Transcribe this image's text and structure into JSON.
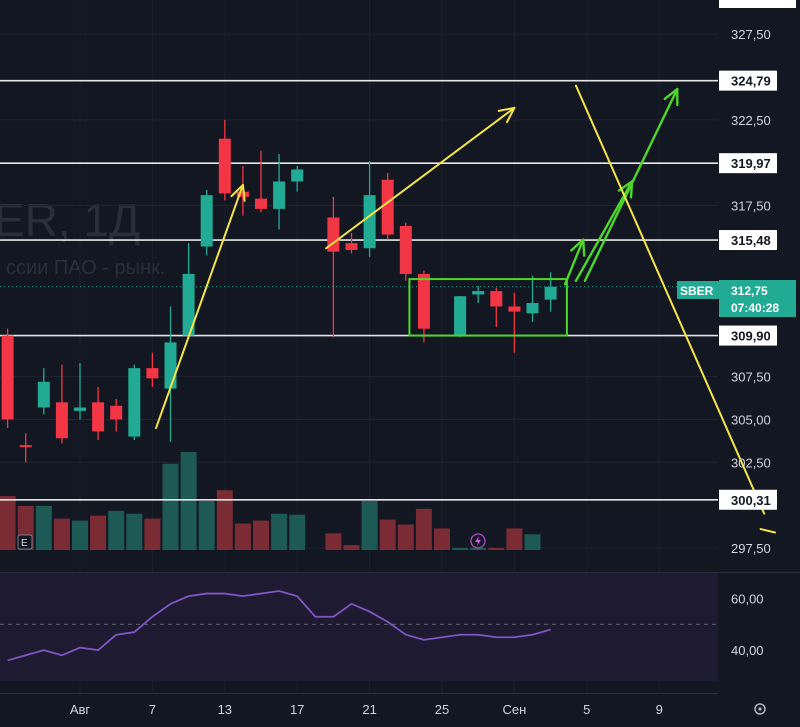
{
  "chart_data": {
    "type": "candlestick",
    "symbol": "SBER",
    "watermark_main": "ER, 1Д",
    "watermark_sub": "ссии ПАО - рынк.",
    "last_price": "312,75",
    "countdown": "07:40:28",
    "price_axis": {
      "ylim": [
        296.5,
        329.5
      ],
      "ticks": [
        "327,50",
        "322,50",
        "317,50",
        "307,50",
        "305,00",
        "302,50",
        "297,50"
      ],
      "tick_values": [
        327.5,
        322.5,
        317.5,
        307.5,
        305.0,
        302.5,
        297.5
      ]
    },
    "levels": [
      {
        "value": 324.79,
        "label": "324,79"
      },
      {
        "value": 319.97,
        "label": "319,97"
      },
      {
        "value": 315.48,
        "label": "315,48"
      },
      {
        "value": 309.9,
        "label": "309,90"
      },
      {
        "value": 300.31,
        "label": "300,31"
      }
    ],
    "x_axis": {
      "labels": [
        "Авг",
        "7",
        "13",
        "17",
        "21",
        "25",
        "Сен",
        "5",
        "9"
      ],
      "label_days": [
        0,
        4,
        8,
        12,
        16,
        20,
        24,
        28,
        32
      ]
    },
    "candles": [
      {
        "d": -4,
        "o": 309.9,
        "c": 305.0,
        "h": 310.3,
        "l": 304.5
      },
      {
        "d": -3,
        "o": 303.5,
        "c": 303.4,
        "h": 304.2,
        "l": 302.5
      },
      {
        "d": -2,
        "o": 305.7,
        "c": 307.2,
        "h": 308.0,
        "l": 305.3
      },
      {
        "d": -1,
        "o": 306.0,
        "c": 303.9,
        "h": 308.2,
        "l": 303.6
      },
      {
        "d": 0,
        "o": 305.5,
        "c": 305.7,
        "h": 308.3,
        "l": 305.0
      },
      {
        "d": 1,
        "o": 306.0,
        "c": 304.3,
        "h": 306.9,
        "l": 303.8
      },
      {
        "d": 2,
        "o": 305.8,
        "c": 305.0,
        "h": 306.2,
        "l": 304.3
      },
      {
        "d": 3,
        "o": 304.0,
        "c": 308.0,
        "h": 308.2,
        "l": 303.8
      },
      {
        "d": 4,
        "o": 308.0,
        "c": 307.4,
        "h": 308.9,
        "l": 306.9
      },
      {
        "d": 5,
        "o": 306.8,
        "c": 309.5,
        "h": 311.6,
        "l": 303.7
      },
      {
        "d": 6,
        "o": 309.9,
        "c": 313.5,
        "h": 315.3,
        "l": 309.7
      },
      {
        "d": 7,
        "o": 315.1,
        "c": 318.1,
        "h": 318.4,
        "l": 314.6
      },
      {
        "d": 8,
        "o": 321.4,
        "c": 318.2,
        "h": 322.5,
        "l": 317.8
      },
      {
        "d": 9,
        "o": 318.3,
        "c": 318.0,
        "h": 319.8,
        "l": 316.9
      },
      {
        "d": 10,
        "o": 317.9,
        "c": 317.3,
        "h": 320.7,
        "l": 317.1
      },
      {
        "d": 11,
        "o": 317.3,
        "c": 318.9,
        "h": 320.5,
        "l": 316.1
      },
      {
        "d": 12,
        "o": 318.9,
        "c": 319.6,
        "h": 319.8,
        "l": 318.3
      },
      {
        "d": 14,
        "o": 316.8,
        "c": 314.8,
        "h": 318.0,
        "l": 309.8
      },
      {
        "d": 15,
        "o": 315.3,
        "c": 314.9,
        "h": 315.9,
        "l": 314.7
      },
      {
        "d": 16,
        "o": 315.0,
        "c": 318.1,
        "h": 320.1,
        "l": 314.5
      },
      {
        "d": 17,
        "o": 319.0,
        "c": 315.8,
        "h": 319.4,
        "l": 315.5
      },
      {
        "d": 18,
        "o": 316.3,
        "c": 313.5,
        "h": 316.5,
        "l": 313.1
      },
      {
        "d": 19,
        "o": 313.5,
        "c": 310.3,
        "h": 313.7,
        "l": 309.5
      },
      {
        "d": 21,
        "o": 309.9,
        "c": 312.2,
        "h": 312.2,
        "l": 309.8
      },
      {
        "d": 22,
        "o": 312.3,
        "c": 312.5,
        "h": 312.8,
        "l": 311.8
      },
      {
        "d": 23,
        "o": 312.5,
        "c": 311.6,
        "h": 312.7,
        "l": 310.4
      },
      {
        "d": 24,
        "o": 311.6,
        "c": 311.3,
        "h": 312.4,
        "l": 308.9
      },
      {
        "d": 25,
        "o": 311.2,
        "c": 311.8,
        "h": 313.4,
        "l": 310.7
      },
      {
        "d": 26,
        "o": 312.0,
        "c": 312.75,
        "h": 313.6,
        "l": 311.3
      }
    ],
    "volumes": [
      {
        "d": -4,
        "v": 0.55,
        "up": false
      },
      {
        "d": -3,
        "v": 0.45,
        "up": false
      },
      {
        "d": -2,
        "v": 0.45,
        "up": true
      },
      {
        "d": -1,
        "v": 0.32,
        "up": false
      },
      {
        "d": 0,
        "v": 0.3,
        "up": true
      },
      {
        "d": 1,
        "v": 0.35,
        "up": false
      },
      {
        "d": 2,
        "v": 0.4,
        "up": true
      },
      {
        "d": 3,
        "v": 0.37,
        "up": true
      },
      {
        "d": 4,
        "v": 0.32,
        "up": false
      },
      {
        "d": 5,
        "v": 0.88,
        "up": true
      },
      {
        "d": 6,
        "v": 1.0,
        "up": true
      },
      {
        "d": 7,
        "v": 0.5,
        "up": true
      },
      {
        "d": 8,
        "v": 0.61,
        "up": false
      },
      {
        "d": 9,
        "v": 0.27,
        "up": false
      },
      {
        "d": 10,
        "v": 0.3,
        "up": false
      },
      {
        "d": 11,
        "v": 0.37,
        "up": true
      },
      {
        "d": 12,
        "v": 0.36,
        "up": true
      },
      {
        "d": 14,
        "v": 0.17,
        "up": false
      },
      {
        "d": 15,
        "v": 0.05,
        "up": false
      },
      {
        "d": 16,
        "v": 0.5,
        "up": true
      },
      {
        "d": 17,
        "v": 0.31,
        "up": false
      },
      {
        "d": 18,
        "v": 0.26,
        "up": false
      },
      {
        "d": 19,
        "v": 0.42,
        "up": false
      },
      {
        "d": 20,
        "v": 0.22,
        "up": false
      },
      {
        "d": 21,
        "v": 0.02,
        "up": true
      },
      {
        "d": 22,
        "v": 0.02,
        "up": true
      },
      {
        "d": 23,
        "v": 0.02,
        "up": false
      },
      {
        "d": 24,
        "v": 0.22,
        "up": false
      },
      {
        "d": 25,
        "v": 0.16,
        "up": true
      }
    ],
    "rsi": {
      "ylim": [
        28,
        70
      ],
      "ticks": [
        "60,00",
        "40,00"
      ],
      "tick_values": [
        60,
        40
      ],
      "d": [
        -4,
        -3,
        -2,
        -1,
        0,
        1,
        2,
        3,
        4,
        5,
        6,
        7,
        8,
        9,
        10,
        11,
        12,
        13,
        14,
        15,
        16,
        17,
        18,
        19,
        20,
        21,
        22,
        23,
        24,
        25,
        26
      ],
      "values": [
        36,
        38,
        40,
        38,
        41,
        40,
        46,
        47,
        53,
        58,
        61,
        62,
        62,
        61,
        62,
        63,
        61,
        53,
        53,
        58,
        55,
        51,
        46,
        44,
        45,
        46,
        46,
        45,
        45,
        46,
        48
      ]
    },
    "drawings": {
      "support_box": {
        "d0": 18.2,
        "d1": 26.9,
        "p0": 313.2,
        "p1": 309.9
      },
      "yellow_up_arrows": [
        {
          "d0": 4.2,
          "p0": 304.5,
          "d1": 9.0,
          "p1": 318.7
        },
        {
          "d0": 13.6,
          "p0": 315.0,
          "d1": 24.0,
          "p1": 323.2
        }
      ],
      "green_up_arrows": [
        {
          "d0": 26.8,
          "p0": 312.9,
          "d1": 27.8,
          "p1": 315.5
        },
        {
          "d0": 27.4,
          "p0": 313.1,
          "d1": 30.5,
          "p1": 318.9
        },
        {
          "d0": 27.9,
          "p0": 313.1,
          "d1": 33.0,
          "p1": 324.3
        }
      ],
      "yellow_down_line": {
        "d0": 27.4,
        "p0": 324.5,
        "d1": 37.8,
        "p1": 299.5
      },
      "yellow_tail": {
        "d0": 37.6,
        "p0": 298.6,
        "d1": 38.4,
        "p1": 298.4
      }
    }
  }
}
